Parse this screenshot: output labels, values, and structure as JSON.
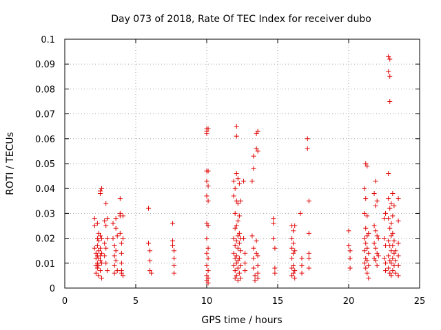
{
  "chart_data": {
    "type": "scatter",
    "title": "Day 073 of 2018, Rate Of TEC Index for receiver dubo",
    "xlabel": "GPS time / hours",
    "ylabel": "ROTI / TECUs",
    "xlim": [
      0,
      25
    ],
    "ylim": [
      0,
      0.1
    ],
    "x_ticks": [
      "0",
      "5",
      "10",
      "15",
      "20",
      "25"
    ],
    "y_ticks": [
      "0",
      "0.01",
      "0.02",
      "0.03",
      "0.04",
      "0.05",
      "0.06",
      "0.07",
      "0.08",
      "0.09",
      "0.1"
    ],
    "grid": true,
    "marker": "plus",
    "color": "#e00000",
    "series": [
      {
        "points": [
          [
            2.1,
            0.028
          ],
          [
            2.1,
            0.025
          ],
          [
            2.1,
            0.016
          ],
          [
            2.2,
            0.014
          ],
          [
            2.2,
            0.012
          ],
          [
            2.2,
            0.009
          ],
          [
            2.2,
            0.006
          ],
          [
            2.3,
            0.026
          ],
          [
            2.3,
            0.02
          ],
          [
            2.3,
            0.017
          ],
          [
            2.3,
            0.013
          ],
          [
            2.3,
            0.01
          ],
          [
            2.3,
            0.008
          ],
          [
            2.4,
            0.022
          ],
          [
            2.4,
            0.019
          ],
          [
            2.4,
            0.015
          ],
          [
            2.4,
            0.012
          ],
          [
            2.4,
            0.009
          ],
          [
            2.4,
            0.005
          ],
          [
            2.5,
            0.039
          ],
          [
            2.5,
            0.038
          ],
          [
            2.5,
            0.021
          ],
          [
            2.5,
            0.016
          ],
          [
            2.5,
            0.013
          ],
          [
            2.5,
            0.011
          ],
          [
            2.5,
            0.007
          ],
          [
            2.6,
            0.04
          ],
          [
            2.6,
            0.02
          ],
          [
            2.6,
            0.014
          ],
          [
            2.6,
            0.01
          ],
          [
            2.6,
            0.004
          ],
          [
            2.8,
            0.027
          ],
          [
            2.8,
            0.018
          ],
          [
            2.8,
            0.013
          ],
          [
            2.9,
            0.034
          ],
          [
            2.9,
            0.025
          ],
          [
            2.9,
            0.016
          ],
          [
            2.9,
            0.01
          ],
          [
            3.0,
            0.028
          ],
          [
            3.0,
            0.02
          ],
          [
            3.0,
            0.007
          ],
          [
            3.4,
            0.026
          ],
          [
            3.4,
            0.02
          ],
          [
            3.5,
            0.017
          ],
          [
            3.5,
            0.013
          ],
          [
            3.5,
            0.009
          ],
          [
            3.5,
            0.006
          ],
          [
            3.6,
            0.028
          ],
          [
            3.6,
            0.024
          ],
          [
            3.6,
            0.015
          ],
          [
            3.6,
            0.011
          ],
          [
            3.7,
            0.021
          ],
          [
            3.7,
            0.007
          ],
          [
            3.9,
            0.036
          ],
          [
            3.9,
            0.03
          ],
          [
            3.9,
            0.029
          ],
          [
            3.9,
            0.022
          ],
          [
            4.0,
            0.018
          ],
          [
            4.0,
            0.014
          ],
          [
            4.0,
            0.01
          ],
          [
            4.0,
            0.007
          ],
          [
            4.0,
            0.006
          ],
          [
            4.1,
            0.029
          ],
          [
            4.1,
            0.02
          ],
          [
            4.1,
            0.005
          ],
          [
            5.9,
            0.032
          ],
          [
            5.9,
            0.018
          ],
          [
            6.0,
            0.015
          ],
          [
            6.0,
            0.011
          ],
          [
            6.0,
            0.007
          ],
          [
            6.1,
            0.006
          ],
          [
            7.6,
            0.026
          ],
          [
            7.6,
            0.019
          ],
          [
            7.6,
            0.017
          ],
          [
            7.7,
            0.015
          ],
          [
            7.7,
            0.012
          ],
          [
            7.7,
            0.009
          ],
          [
            7.7,
            0.006
          ],
          [
            10.0,
            0.064
          ],
          [
            10.0,
            0.063
          ],
          [
            10.1,
            0.064
          ],
          [
            10.0,
            0.062
          ],
          [
            10.1,
            0.047
          ],
          [
            10.0,
            0.047
          ],
          [
            10.0,
            0.043
          ],
          [
            10.1,
            0.041
          ],
          [
            10.0,
            0.037
          ],
          [
            10.1,
            0.035
          ],
          [
            10.0,
            0.026
          ],
          [
            10.1,
            0.025
          ],
          [
            10.0,
            0.02
          ],
          [
            10.1,
            0.016
          ],
          [
            10.0,
            0.014
          ],
          [
            10.1,
            0.012
          ],
          [
            10.0,
            0.009
          ],
          [
            10.1,
            0.007
          ],
          [
            10.0,
            0.005
          ],
          [
            10.1,
            0.004
          ],
          [
            10.0,
            0.003
          ],
          [
            10.1,
            0.002
          ],
          [
            11.9,
            0.043
          ],
          [
            11.9,
            0.037
          ],
          [
            11.9,
            0.02
          ],
          [
            11.9,
            0.014
          ],
          [
            11.9,
            0.009
          ],
          [
            12.0,
            0.04
          ],
          [
            12.0,
            0.03
          ],
          [
            12.0,
            0.024
          ],
          [
            12.0,
            0.017
          ],
          [
            12.0,
            0.012
          ],
          [
            12.0,
            0.007
          ],
          [
            12.0,
            0.004
          ],
          [
            12.1,
            0.065
          ],
          [
            12.1,
            0.061
          ],
          [
            12.1,
            0.046
          ],
          [
            12.1,
            0.035
          ],
          [
            12.1,
            0.025
          ],
          [
            12.1,
            0.019
          ],
          [
            12.1,
            0.013
          ],
          [
            12.1,
            0.01
          ],
          [
            12.1,
            0.005
          ],
          [
            12.2,
            0.044
          ],
          [
            12.2,
            0.034
          ],
          [
            12.2,
            0.027
          ],
          [
            12.2,
            0.021
          ],
          [
            12.2,
            0.016
          ],
          [
            12.2,
            0.011
          ],
          [
            12.2,
            0.008
          ],
          [
            12.2,
            0.003
          ],
          [
            12.3,
            0.042
          ],
          [
            12.3,
            0.029
          ],
          [
            12.3,
            0.022
          ],
          [
            12.3,
            0.018
          ],
          [
            12.3,
            0.012
          ],
          [
            12.3,
            0.006
          ],
          [
            12.4,
            0.035
          ],
          [
            12.4,
            0.02
          ],
          [
            12.4,
            0.015
          ],
          [
            12.4,
            0.009
          ],
          [
            12.4,
            0.004
          ],
          [
            12.6,
            0.043
          ],
          [
            12.6,
            0.02
          ],
          [
            12.7,
            0.014
          ],
          [
            12.7,
            0.01
          ],
          [
            12.7,
            0.007
          ],
          [
            13.2,
            0.043
          ],
          [
            13.3,
            0.048
          ],
          [
            13.3,
            0.053
          ],
          [
            13.2,
            0.021
          ],
          [
            13.3,
            0.016
          ],
          [
            13.3,
            0.012
          ],
          [
            13.3,
            0.008
          ],
          [
            13.4,
            0.005
          ],
          [
            13.4,
            0.003
          ],
          [
            13.5,
            0.062
          ],
          [
            13.6,
            0.063
          ],
          [
            13.5,
            0.056
          ],
          [
            13.6,
            0.055
          ],
          [
            13.5,
            0.019
          ],
          [
            13.5,
            0.014
          ],
          [
            13.6,
            0.013
          ],
          [
            13.6,
            0.009
          ],
          [
            13.6,
            0.006
          ],
          [
            13.6,
            0.004
          ],
          [
            14.7,
            0.028
          ],
          [
            14.7,
            0.026
          ],
          [
            14.7,
            0.02
          ],
          [
            14.8,
            0.016
          ],
          [
            14.8,
            0.008
          ],
          [
            14.8,
            0.006
          ],
          [
            16.0,
            0.025
          ],
          [
            16.0,
            0.02
          ],
          [
            16.0,
            0.016
          ],
          [
            16.0,
            0.012
          ],
          [
            16.0,
            0.008
          ],
          [
            16.0,
            0.005
          ],
          [
            16.1,
            0.023
          ],
          [
            16.1,
            0.018
          ],
          [
            16.1,
            0.014
          ],
          [
            16.1,
            0.009
          ],
          [
            16.1,
            0.006
          ],
          [
            16.2,
            0.025
          ],
          [
            16.2,
            0.015
          ],
          [
            16.2,
            0.007
          ],
          [
            16.2,
            0.004
          ],
          [
            16.6,
            0.03
          ],
          [
            16.7,
            0.012
          ],
          [
            16.7,
            0.009
          ],
          [
            16.7,
            0.006
          ],
          [
            17.1,
            0.06
          ],
          [
            17.1,
            0.056
          ],
          [
            17.2,
            0.035
          ],
          [
            17.2,
            0.022
          ],
          [
            17.2,
            0.014
          ],
          [
            17.2,
            0.012
          ],
          [
            17.2,
            0.008
          ],
          [
            20.0,
            0.023
          ],
          [
            20.0,
            0.017
          ],
          [
            20.1,
            0.015
          ],
          [
            20.1,
            0.012
          ],
          [
            20.1,
            0.008
          ],
          [
            21.1,
            0.04
          ],
          [
            21.1,
            0.03
          ],
          [
            21.1,
            0.02
          ],
          [
            21.1,
            0.015
          ],
          [
            21.1,
            0.01
          ],
          [
            21.2,
            0.05
          ],
          [
            21.2,
            0.036
          ],
          [
            21.2,
            0.024
          ],
          [
            21.2,
            0.018
          ],
          [
            21.2,
            0.012
          ],
          [
            21.2,
            0.008
          ],
          [
            21.3,
            0.049
          ],
          [
            21.3,
            0.029
          ],
          [
            21.3,
            0.021
          ],
          [
            21.3,
            0.016
          ],
          [
            21.3,
            0.011
          ],
          [
            21.3,
            0.006
          ],
          [
            21.4,
            0.022
          ],
          [
            21.4,
            0.014
          ],
          [
            21.4,
            0.009
          ],
          [
            21.4,
            0.004
          ],
          [
            21.8,
            0.038
          ],
          [
            21.8,
            0.025
          ],
          [
            21.8,
            0.018
          ],
          [
            21.8,
            0.012
          ],
          [
            21.9,
            0.043
          ],
          [
            21.9,
            0.033
          ],
          [
            21.9,
            0.023
          ],
          [
            21.9,
            0.016
          ],
          [
            21.9,
            0.011
          ],
          [
            22.0,
            0.035
          ],
          [
            22.0,
            0.021
          ],
          [
            22.0,
            0.014
          ],
          [
            22.0,
            0.009
          ],
          [
            22.1,
            0.02
          ],
          [
            22.1,
            0.013
          ],
          [
            22.5,
            0.028
          ],
          [
            22.5,
            0.02
          ],
          [
            22.5,
            0.012
          ],
          [
            22.6,
            0.03
          ],
          [
            22.6,
            0.017
          ],
          [
            22.6,
            0.01
          ],
          [
            22.6,
            0.007
          ],
          [
            22.8,
            0.093
          ],
          [
            22.9,
            0.092
          ],
          [
            22.8,
            0.087
          ],
          [
            22.9,
            0.085
          ],
          [
            22.9,
            0.075
          ],
          [
            22.8,
            0.046
          ],
          [
            22.8,
            0.036
          ],
          [
            22.8,
            0.028
          ],
          [
            22.8,
            0.019
          ],
          [
            22.8,
            0.013
          ],
          [
            22.8,
            0.008
          ],
          [
            22.9,
            0.032
          ],
          [
            22.9,
            0.024
          ],
          [
            22.9,
            0.017
          ],
          [
            22.9,
            0.011
          ],
          [
            22.9,
            0.006
          ],
          [
            23.0,
            0.034
          ],
          [
            23.0,
            0.026
          ],
          [
            23.0,
            0.021
          ],
          [
            23.0,
            0.015
          ],
          [
            23.0,
            0.01
          ],
          [
            23.0,
            0.005
          ],
          [
            23.1,
            0.038
          ],
          [
            23.1,
            0.029
          ],
          [
            23.1,
            0.022
          ],
          [
            23.1,
            0.017
          ],
          [
            23.1,
            0.012
          ],
          [
            23.1,
            0.007
          ],
          [
            23.2,
            0.033
          ],
          [
            23.2,
            0.019
          ],
          [
            23.2,
            0.014
          ],
          [
            23.2,
            0.009
          ],
          [
            23.3,
            0.015
          ],
          [
            23.3,
            0.011
          ],
          [
            23.3,
            0.006
          ],
          [
            23.5,
            0.036
          ],
          [
            23.5,
            0.027
          ],
          [
            23.5,
            0.018
          ],
          [
            23.5,
            0.013
          ],
          [
            23.5,
            0.009
          ],
          [
            23.5,
            0.005
          ]
        ]
      }
    ]
  }
}
